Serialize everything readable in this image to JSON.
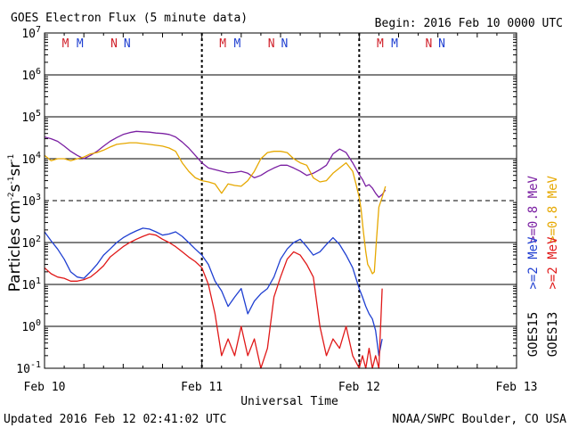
{
  "header": {
    "title": "GOES Electron Flux (5 minute data)",
    "begin": "Begin: 2016 Feb 10 0000 UTC"
  },
  "footer": {
    "updated": "Updated 2016 Feb 12 02:41:02 UTC",
    "credit": "NOAA/SWPC Boulder, CO USA"
  },
  "satellites": {
    "primary": "GOES15",
    "secondary": "GOES13"
  },
  "legend": {
    "g15_08": ">=0.8 MeV",
    "g13_08": ">=0.8 MeV",
    "g15_2": ">=2 MeV",
    "g13_2": ">=2 MeV"
  },
  "colors": {
    "g15_08": "#7a1fa2",
    "g13_08": "#e6a800",
    "g15_2": "#1f3fd1",
    "g13_2": "#e01818",
    "mn_m": "#d0202a",
    "mn_blue": "#1f3fd1"
  },
  "chart_data": {
    "type": "line",
    "title": "GOES Electron Flux (5 minute data)",
    "xlabel": "Universal Time",
    "ylabel": "Particles cm-2s-1sr-1",
    "yscale": "log",
    "ylim": [
      0.1,
      10000000
    ],
    "xlim": [
      0,
      72
    ],
    "x_unit": "hours since 2016 Feb 10 0000 UTC",
    "x_ticks": [
      "Feb 10",
      "Feb 11",
      "Feb 12",
      "Feb 13"
    ],
    "y_ticks": [
      "10-1",
      "100",
      "101",
      "102",
      "103",
      "104",
      "105",
      "106",
      "107"
    ],
    "alert_threshold": 1000,
    "grid": true,
    "day_markers": [
      {
        "day": "Feb 10",
        "labels": [
          "M",
          "M",
          "N",
          "N"
        ],
        "hours": [
          3.2,
          5.4,
          10.6,
          12.6
        ]
      },
      {
        "day": "Feb 11",
        "labels": [
          "M",
          "M",
          "N",
          "N"
        ],
        "hours": [
          27.2,
          29.4,
          34.6,
          36.6
        ]
      },
      {
        "day": "Feb 12",
        "labels": [
          "M",
          "M",
          "N",
          "N"
        ],
        "hours": [
          51.2,
          53.4,
          58.6,
          60.6
        ]
      }
    ],
    "series": [
      {
        "name": "GOES15 >=0.8 MeV",
        "x": [
          0,
          1,
          2,
          3,
          4,
          5,
          6,
          7,
          8,
          9,
          10,
          11,
          12,
          13,
          14,
          15,
          16,
          17,
          18,
          19,
          20,
          21,
          22,
          23,
          24,
          25,
          26,
          27,
          28,
          29,
          30,
          31,
          32,
          33,
          34,
          35,
          36,
          37,
          38,
          39,
          40,
          41,
          42,
          43,
          44,
          45,
          46,
          47,
          48,
          48.5,
          49,
          49.5,
          50,
          50.5,
          51,
          51.5,
          52
        ],
        "y": [
          33000,
          30000,
          26000,
          20000,
          15000,
          12000,
          10000,
          12000,
          15000,
          20000,
          26000,
          32000,
          38000,
          42000,
          45000,
          44000,
          43000,
          41000,
          40000,
          38000,
          33000,
          25000,
          18000,
          12000,
          8000,
          6000,
          5500,
          5000,
          4600,
          4700,
          5000,
          4500,
          3500,
          4000,
          5000,
          6000,
          7000,
          7000,
          6000,
          5000,
          4000,
          4500,
          5500,
          7000,
          13000,
          17000,
          14000,
          8000,
          4200,
          3200,
          2200,
          2400,
          2000,
          1500,
          1200,
          1400,
          1800
        ]
      },
      {
        "name": "GOES13 >=0.8 MeV",
        "x": [
          0,
          1,
          2,
          3,
          4,
          5,
          6,
          7,
          8,
          9,
          10,
          11,
          12,
          13,
          14,
          15,
          16,
          17,
          18,
          19,
          20,
          21,
          22,
          23,
          24,
          25,
          26,
          27,
          28,
          29,
          30,
          31,
          32,
          33,
          34,
          35,
          36,
          37,
          38,
          39,
          40,
          41,
          42,
          43,
          44,
          45,
          46,
          47,
          47.5,
          48,
          48.3,
          48.6,
          49,
          49.3,
          49.6,
          50,
          50.3,
          50.6,
          51,
          51.5,
          52
        ],
        "y": [
          12000,
          9000,
          10000,
          10000,
          9000,
          10000,
          11000,
          13000,
          14000,
          16000,
          19000,
          22000,
          23000,
          24000,
          24000,
          23000,
          22000,
          21000,
          20000,
          18000,
          15000,
          8000,
          5000,
          3500,
          3000,
          2800,
          2500,
          1500,
          2500,
          2300,
          2200,
          3000,
          5000,
          10000,
          14000,
          15000,
          15000,
          14000,
          10000,
          8000,
          7000,
          3500,
          2800,
          3000,
          4500,
          6000,
          8000,
          5000,
          2500,
          1200,
          600,
          200,
          60,
          30,
          25,
          18,
          20,
          100,
          700,
          1200,
          2200
        ]
      },
      {
        "name": "GOES15 >=2 MeV",
        "x": [
          0,
          1,
          2,
          3,
          4,
          5,
          6,
          7,
          8,
          9,
          10,
          11,
          12,
          13,
          14,
          15,
          16,
          17,
          18,
          19,
          20,
          21,
          22,
          23,
          24,
          25,
          26,
          27,
          28,
          29,
          30,
          31,
          32,
          33,
          34,
          35,
          36,
          37,
          38,
          39,
          40,
          41,
          42,
          43,
          44,
          45,
          46,
          47,
          48,
          48.5,
          49,
          49.5,
          50,
          50.5,
          51,
          51.5
        ],
        "y": [
          180,
          110,
          70,
          40,
          20,
          15,
          14,
          20,
          30,
          50,
          70,
          100,
          130,
          160,
          190,
          220,
          210,
          180,
          150,
          160,
          180,
          140,
          100,
          70,
          50,
          30,
          12,
          7,
          3,
          5,
          8,
          2,
          4,
          6,
          8,
          15,
          40,
          70,
          100,
          120,
          80,
          50,
          60,
          90,
          130,
          90,
          50,
          25,
          8,
          5,
          3,
          2,
          1.5,
          0.8,
          0.2,
          0.5
        ]
      },
      {
        "name": "GOES13 >=2 MeV",
        "x": [
          0,
          1,
          2,
          3,
          4,
          5,
          6,
          7,
          8,
          9,
          10,
          11,
          12,
          13,
          14,
          15,
          16,
          17,
          18,
          19,
          20,
          21,
          22,
          23,
          24,
          25,
          26,
          27,
          28,
          29,
          30,
          31,
          32,
          33,
          34,
          35,
          36,
          37,
          38,
          39,
          40,
          41,
          42,
          43,
          44,
          45,
          46,
          47,
          48,
          48.5,
          49,
          49.5,
          50,
          50.5,
          51,
          51.5
        ],
        "y": [
          25,
          18,
          15,
          14,
          12,
          12,
          13,
          15,
          20,
          28,
          45,
          60,
          80,
          100,
          120,
          140,
          160,
          150,
          120,
          100,
          80,
          60,
          45,
          35,
          25,
          10,
          2,
          0.2,
          0.5,
          0.2,
          1,
          0.2,
          0.5,
          0.1,
          0.3,
          5,
          15,
          40,
          60,
          50,
          30,
          15,
          1,
          0.2,
          0.5,
          0.3,
          1,
          0.2,
          0.1,
          0.2,
          0.1,
          0.3,
          0.1,
          0.2,
          0.1,
          8
        ]
      }
    ]
  }
}
